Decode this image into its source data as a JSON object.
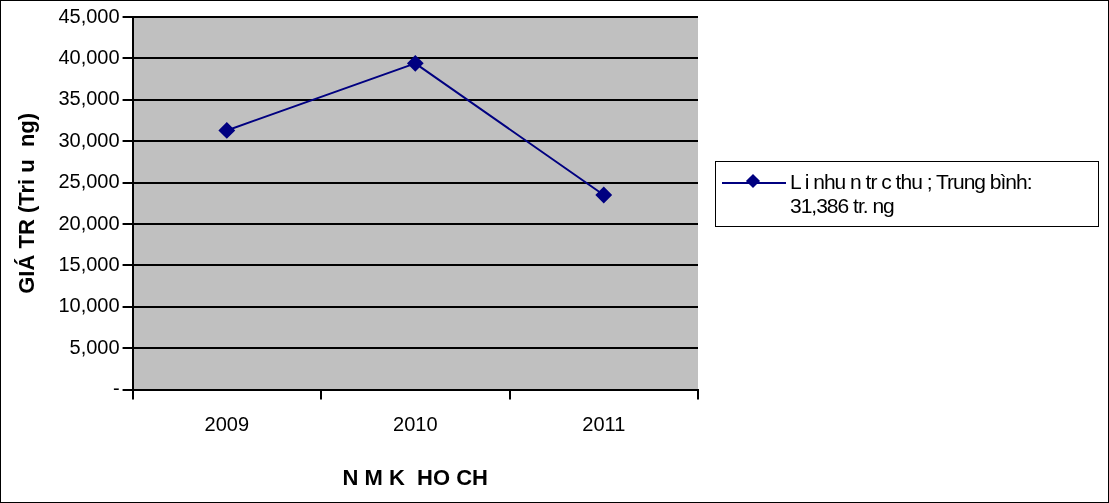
{
  "chart_data": {
    "type": "line",
    "xlabel": "N M K  HO CH",
    "ylabel": "GIÁ TR (Tri u  ng)",
    "categories": [
      "2009",
      "2010",
      "2011"
    ],
    "series": [
      {
        "name": "L i nhu n tr  c thu ; Trung bình: 31,386 tr.  ng",
        "color": "#000080",
        "values": [
          31300,
          39400,
          23500
        ]
      }
    ],
    "ylim": [
      0,
      45000
    ],
    "yticks": [
      {
        "value": 0,
        "label": "-"
      },
      {
        "value": 5000,
        "label": "5,000"
      },
      {
        "value": 10000,
        "label": "10,000"
      },
      {
        "value": 15000,
        "label": "15,000"
      },
      {
        "value": 20000,
        "label": "20,000"
      },
      {
        "value": 25000,
        "label": "25,000"
      },
      {
        "value": 30000,
        "label": "30,000"
      },
      {
        "value": 35000,
        "label": "35,000"
      },
      {
        "value": 40000,
        "label": "40,000"
      },
      {
        "value": 45000,
        "label": "45,000"
      }
    ],
    "grid": "y",
    "legend": "right",
    "marker": "diamond",
    "line_style": "solid"
  }
}
